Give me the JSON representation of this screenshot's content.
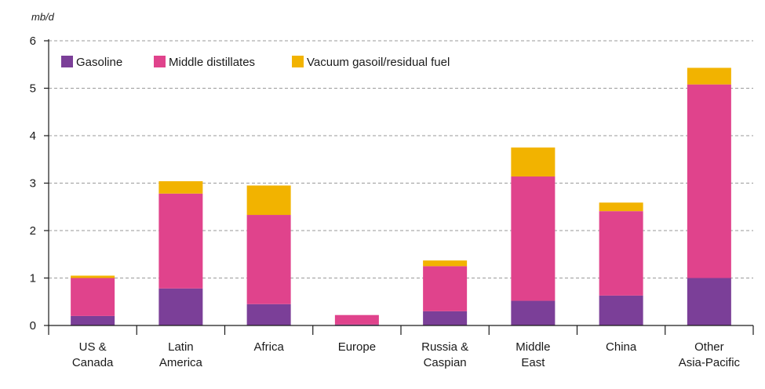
{
  "chart_data": {
    "type": "bar",
    "stacked": true,
    "unit_label": "mb/d",
    "ylim": [
      0,
      6
    ],
    "yticks": [
      0,
      1,
      2,
      3,
      4,
      5,
      6
    ],
    "grid": true,
    "legend_placement": "top-left",
    "categories": [
      [
        "US &",
        "Canada"
      ],
      [
        "Latin",
        "America"
      ],
      [
        "Africa"
      ],
      [
        "Europe"
      ],
      [
        "Russia &",
        "Caspian"
      ],
      [
        "Middle",
        "East"
      ],
      [
        "China"
      ],
      [
        "Other",
        "Asia-Pacific"
      ]
    ],
    "series": [
      {
        "name": "Gasoline",
        "color": "#7b3f98",
        "values": [
          0.2,
          0.78,
          0.45,
          0.02,
          0.3,
          0.52,
          0.63,
          1.0
        ]
      },
      {
        "name": "Middle distillates",
        "color": "#e0438c",
        "values": [
          0.8,
          2.0,
          1.88,
          0.2,
          0.95,
          2.62,
          1.78,
          4.08
        ]
      },
      {
        "name": "Vacuum gasoil/residual fuel",
        "color": "#f2b300",
        "values": [
          0.05,
          0.26,
          0.62,
          0.0,
          0.12,
          0.61,
          0.18,
          0.35
        ]
      }
    ]
  }
}
